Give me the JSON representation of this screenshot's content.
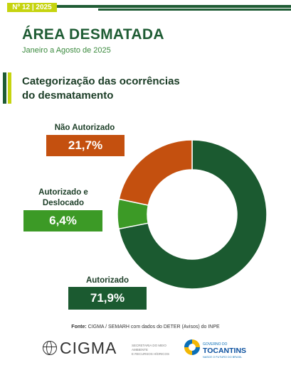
{
  "header": {
    "issue_tag": "Nº 12 | 2025",
    "title": "ÁREA DESMATADA",
    "subtitle": "Janeiro a Agosto de 2025",
    "section_title_line1": "Categorização das ocorrências",
    "section_title_line2": "do desmatamento"
  },
  "colors": {
    "nao_autorizado": "#c4500f",
    "autorizado_deslocado": "#3c9a26",
    "autorizado": "#1b5a30",
    "brand_dark_green": "#1f5c34",
    "brand_lime": "#c6d40f"
  },
  "chart_data": {
    "type": "pie",
    "donut": true,
    "categories": [
      "Autorizado",
      "Autorizado e Deslocado",
      "Não Autorizado"
    ],
    "values": [
      71.9,
      6.4,
      21.7
    ],
    "value_labels": [
      "71,9%",
      "6,4%",
      "21,7%"
    ],
    "colors": [
      "#1b5a30",
      "#3c9a26",
      "#c4500f"
    ],
    "start": "top, clockwise"
  },
  "labels": {
    "nao_autorizado": "Não Autorizado",
    "nao_autorizado_value": "21,7%",
    "deslocado_line1": "Autorizado e",
    "deslocado_line2": "Deslocado",
    "deslocado_value": "6,4%",
    "autorizado": "Autorizado",
    "autorizado_value": "71,9%"
  },
  "footer": {
    "source_label": "Fonte:",
    "source_text": "CIGMA / SEMARH com dados do DETER (Avisos) do INPE",
    "logo_cigma": "CIGMA",
    "secretaria_line1": "SECRETARIA DO MEIO AMBIENTE",
    "secretaria_line2": "E RECURSOS HÍDRICOS",
    "gov_line1": "GOVERNO DO",
    "gov_line2": "TOCANTINS",
    "gov_line3": "NASCE O FUTURO DO BRASIL"
  }
}
